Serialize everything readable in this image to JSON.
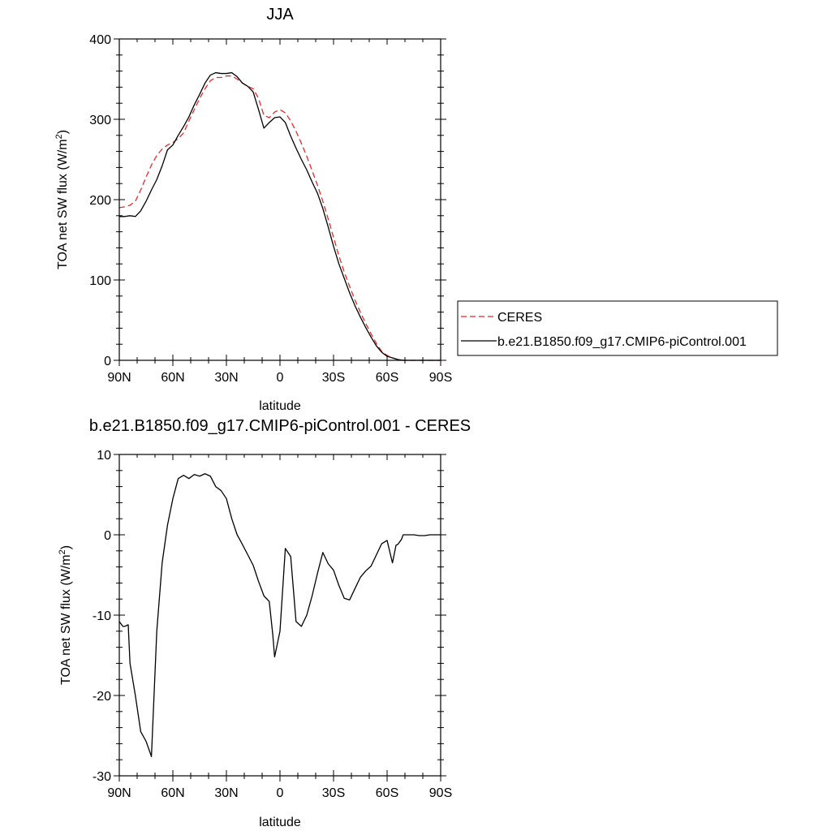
{
  "chart_data": [
    {
      "type": "line",
      "title": "JJA",
      "xlabel": "latitude",
      "ylabel_main": "TOA net SW flux (W/m",
      "ylabel_sup": "2",
      "ylabel_close": ")",
      "xlim": [
        90,
        -90
      ],
      "ylim": [
        0,
        400
      ],
      "x_ticks": [
        90,
        60,
        30,
        0,
        -30,
        -60,
        -90
      ],
      "x_tick_labels": [
        "90N",
        "60N",
        "30N",
        "0",
        "30S",
        "60S",
        "90S"
      ],
      "y_ticks": [
        0,
        100,
        200,
        300,
        400
      ],
      "y_tick_labels": [
        "0",
        "100",
        "200",
        "300",
        "400"
      ],
      "legend_position": "right",
      "series": [
        {
          "name": "CERES",
          "color": "#e8282a",
          "dash": "dashed",
          "x": [
            90,
            87,
            84,
            81,
            78,
            75,
            72,
            69,
            66,
            63,
            60,
            57,
            54,
            51,
            48,
            45,
            42,
            39,
            36,
            33,
            30,
            27,
            24,
            21,
            18,
            15,
            12,
            9,
            6,
            3,
            0,
            -3,
            -6,
            -9,
            -12,
            -15,
            -18,
            -21,
            -24,
            -27,
            -30,
            -33,
            -36,
            -39,
            -42,
            -45,
            -48,
            -51,
            -54,
            -57,
            -60,
            -63,
            -66,
            -69,
            -72,
            -75,
            -78,
            -81,
            -84,
            -87,
            -90
          ],
          "y": [
            190,
            191,
            193,
            198,
            212,
            228,
            243,
            255,
            263,
            268,
            271,
            276,
            283,
            298,
            312,
            326,
            338,
            348,
            352,
            352,
            354,
            354,
            350,
            345,
            341,
            338,
            326,
            305,
            302,
            309,
            312,
            308,
            298,
            285,
            270,
            254,
            236,
            218,
            198,
            176,
            153,
            130,
            110,
            92,
            75,
            60,
            46,
            33,
            21,
            11,
            6,
            3,
            1,
            0,
            0,
            0,
            0,
            0,
            0,
            0,
            0
          ]
        },
        {
          "name": "b.e21.B1850.f09_g17.CMIP6-piControl.001",
          "color": "#000000",
          "dash": "solid",
          "x": [
            90,
            87,
            84,
            81,
            78,
            75,
            72,
            69,
            66,
            63,
            60,
            57,
            54,
            51,
            48,
            45,
            42,
            39,
            36,
            33,
            30,
            27,
            24,
            21,
            18,
            15,
            12,
            9,
            6,
            3,
            0,
            -3,
            -6,
            -9,
            -12,
            -15,
            -18,
            -21,
            -24,
            -27,
            -30,
            -33,
            -36,
            -39,
            -42,
            -45,
            -48,
            -51,
            -54,
            -57,
            -60,
            -63,
            -66,
            -69,
            -72,
            -75,
            -78,
            -81,
            -84,
            -87,
            -90
          ],
          "y": [
            179,
            179,
            180,
            179,
            186,
            198,
            212,
            225,
            242,
            262,
            268,
            280,
            291,
            303,
            318,
            331,
            345,
            355,
            358,
            357,
            357,
            358,
            353,
            345,
            341,
            334,
            312,
            289,
            296,
            302,
            303,
            296,
            279,
            264,
            250,
            237,
            222,
            208,
            189,
            166,
            142,
            120,
            102,
            84,
            68,
            54,
            41,
            29,
            18,
            10,
            5,
            3,
            1,
            0,
            0,
            0,
            0,
            0,
            0,
            0,
            0
          ]
        }
      ]
    },
    {
      "type": "line",
      "title": "b.e21.B1850.f09_g17.CMIP6-piControl.001 - CERES",
      "xlabel": "latitude",
      "ylabel_main": "TOA net SW flux (W/m",
      "ylabel_sup": "2",
      "ylabel_close": ")",
      "xlim": [
        90,
        -90
      ],
      "ylim": [
        -30,
        10
      ],
      "x_ticks": [
        90,
        60,
        30,
        0,
        -30,
        -60,
        -90
      ],
      "x_tick_labels": [
        "90N",
        "60N",
        "30N",
        "0",
        "30S",
        "60S",
        "90S"
      ],
      "y_ticks": [
        -30,
        -20,
        -10,
        0,
        10
      ],
      "y_tick_labels": [
        "-30",
        "-20",
        "-10",
        "0",
        "10"
      ],
      "series": [
        {
          "color": "#000000",
          "dash": "solid",
          "x": [
            90,
            88,
            87,
            85,
            84,
            81,
            78,
            75,
            72,
            69,
            66,
            63,
            60,
            57,
            54,
            51,
            48,
            45,
            42,
            39,
            36,
            33,
            30,
            27,
            24,
            22,
            18,
            15,
            12,
            9,
            6,
            4,
            3,
            0,
            -3,
            -6,
            -9,
            -12,
            -15,
            -18,
            -21,
            -24,
            -27,
            -30,
            -33,
            -36,
            -39,
            -42,
            -45,
            -48,
            -51,
            -54,
            -57,
            -60,
            -63,
            -65,
            -66,
            -68,
            -69,
            -72,
            -75,
            -78,
            -81,
            -84,
            -87,
            -90
          ],
          "y": [
            -10.8,
            -11.4,
            -11.4,
            -11.2,
            -16.0,
            -20.0,
            -24.5,
            -25.7,
            -27.6,
            -12.0,
            -3.5,
            1.2,
            4.5,
            7.0,
            7.4,
            7.0,
            7.5,
            7.3,
            7.6,
            7.3,
            6.0,
            5.5,
            4.5,
            2.0,
            0.0,
            -0.8,
            -2.5,
            -3.8,
            -5.8,
            -7.6,
            -8.3,
            -12.5,
            -15.2,
            -12.0,
            -1.7,
            -2.7,
            -10.8,
            -11.4,
            -10.0,
            -7.6,
            -4.8,
            -2.2,
            -3.6,
            -4.4,
            -6.3,
            -7.9,
            -8.1,
            -6.7,
            -5.3,
            -4.5,
            -3.9,
            -2.5,
            -1.1,
            -0.7,
            -3.5,
            -1.3,
            -1.2,
            -0.6,
            0.0,
            0.0,
            0.0,
            -0.1,
            -0.1,
            0.0,
            0.0,
            0.0
          ]
        }
      ]
    }
  ]
}
